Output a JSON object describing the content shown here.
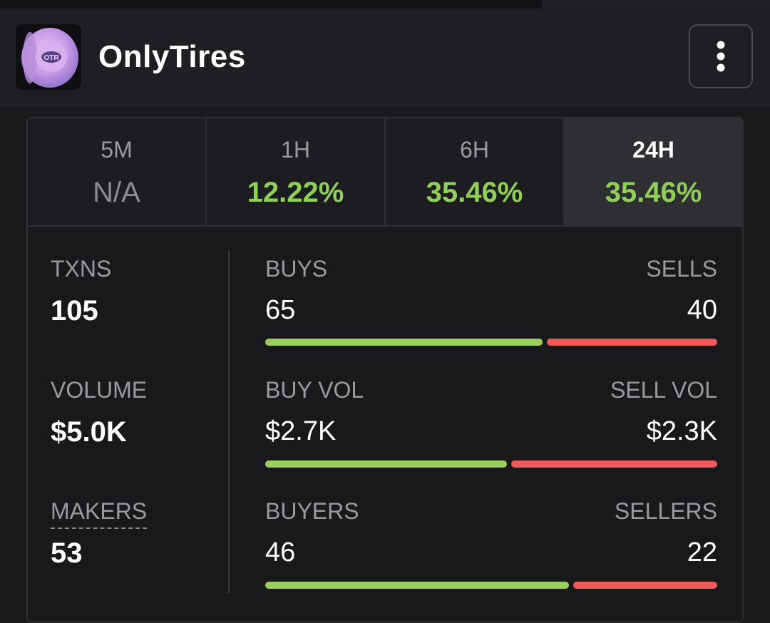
{
  "header": {
    "token_name": "OnlyTires",
    "logo_text": "OTR",
    "menu_icon": "more-vertical-icon"
  },
  "tabs": [
    {
      "label": "5M",
      "value": "N/A",
      "active": false
    },
    {
      "label": "1H",
      "value": "12.22%",
      "active": false
    },
    {
      "label": "6H",
      "value": "35.46%",
      "active": false
    },
    {
      "label": "24H",
      "value": "35.46%",
      "active": true
    }
  ],
  "metrics": {
    "txns": {
      "label": "TXNS",
      "value": "105"
    },
    "volume": {
      "label": "VOLUME",
      "value": "$5.0K"
    },
    "makers": {
      "label": "MAKERS",
      "value": "53"
    }
  },
  "breakdown": {
    "txns": {
      "buy_label": "BUYS",
      "buy_value": "65",
      "sell_label": "SELLS",
      "sell_value": "40",
      "buy_share": 0.619
    },
    "volume": {
      "buy_label": "BUY VOL",
      "buy_value": "$2.7K",
      "sell_label": "SELL VOL",
      "sell_value": "$2.3K",
      "buy_share": 0.54
    },
    "makers": {
      "buy_label": "BUYERS",
      "buy_value": "46",
      "sell_label": "SELLERS",
      "sell_value": "22",
      "buy_share": 0.676
    }
  },
  "colors": {
    "positive": "#8fcf5a",
    "buy_bar": "#9ccf5e",
    "sell_bar": "#ee5a5a",
    "background": "#1a1a1d"
  }
}
